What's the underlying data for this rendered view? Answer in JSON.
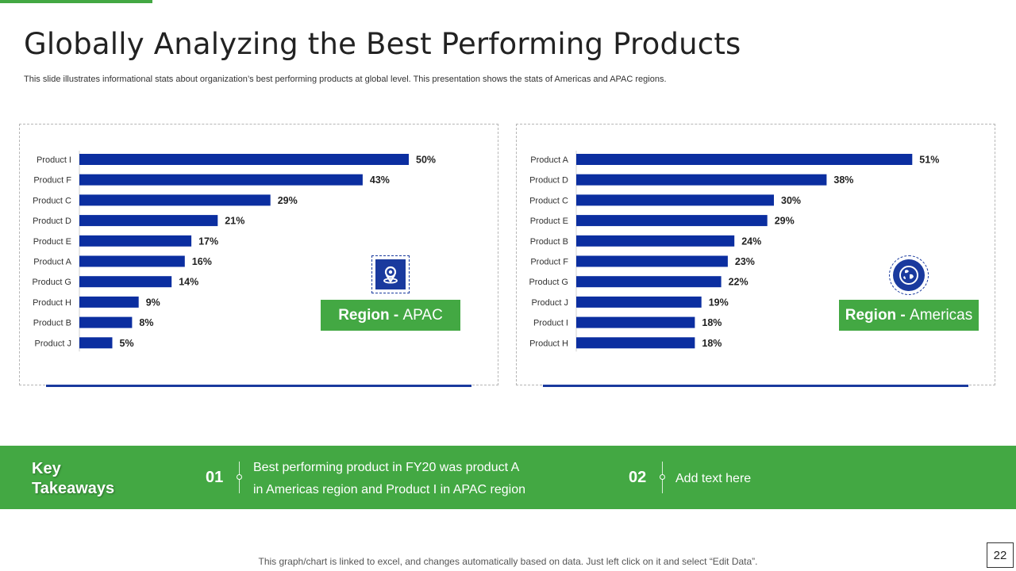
{
  "page": {
    "title": "Globally Analyzing the Best Performing Products",
    "subtitle": "This slide illustrates informational stats about organization’s best performing products at global level. This presentation shows the stats of Americas and APAC  regions.",
    "footnote": "This graph/chart is linked to excel, and changes automatically based on data. Just left click on it and select “Edit Data”.",
    "page_number": "22"
  },
  "colors": {
    "accent_green": "#43a843",
    "bar_blue": "#0b2ea0",
    "icon_blue": "#1a3a9e"
  },
  "regions": {
    "apac": {
      "label_bold": "Region - ",
      "label_rest": "APAC",
      "icon": "map-marker-icon"
    },
    "americas": {
      "label_bold": "Region - ",
      "label_rest": "Americas",
      "icon": "globe-icon"
    }
  },
  "takeaways": {
    "title": "Key Takeaways",
    "items": [
      {
        "num": "01",
        "text_line1": "Best performing product in FY20 was product A",
        "text_line2": "in Americas region and Product I in APAC region"
      },
      {
        "num": "02",
        "text_line1": "Add text here"
      }
    ]
  },
  "chart_data": [
    {
      "type": "bar",
      "orientation": "horizontal",
      "region": "APAC",
      "categories": [
        "Product I",
        "Product F",
        "Product C",
        "Product D",
        "Product E",
        "Product A",
        "Product G",
        "Product H",
        "Product B",
        "Product J"
      ],
      "values": [
        50,
        43,
        29,
        21,
        17,
        16,
        14,
        9,
        8,
        5
      ],
      "value_labels": [
        "50%",
        "43%",
        "29%",
        "21%",
        "17%",
        "16%",
        "14%",
        "9%",
        "8%",
        "5%"
      ],
      "unit": "%",
      "xlim": [
        0,
        100
      ],
      "grid": false
    },
    {
      "type": "bar",
      "orientation": "horizontal",
      "region": "Americas",
      "categories": [
        "Product A",
        "Product D",
        "Product C",
        "Product E",
        "Product B",
        "Product F",
        "Product G",
        "Product J",
        "Product I",
        "Product H"
      ],
      "values": [
        51,
        38,
        30,
        29,
        24,
        23,
        22,
        19,
        18,
        18
      ],
      "value_labels": [
        "51%",
        "38%",
        "30%",
        "29%",
        "24%",
        "23%",
        "22%",
        "19%",
        "18%",
        "18%"
      ],
      "unit": "%",
      "xlim": [
        0,
        100
      ],
      "grid": false
    }
  ]
}
